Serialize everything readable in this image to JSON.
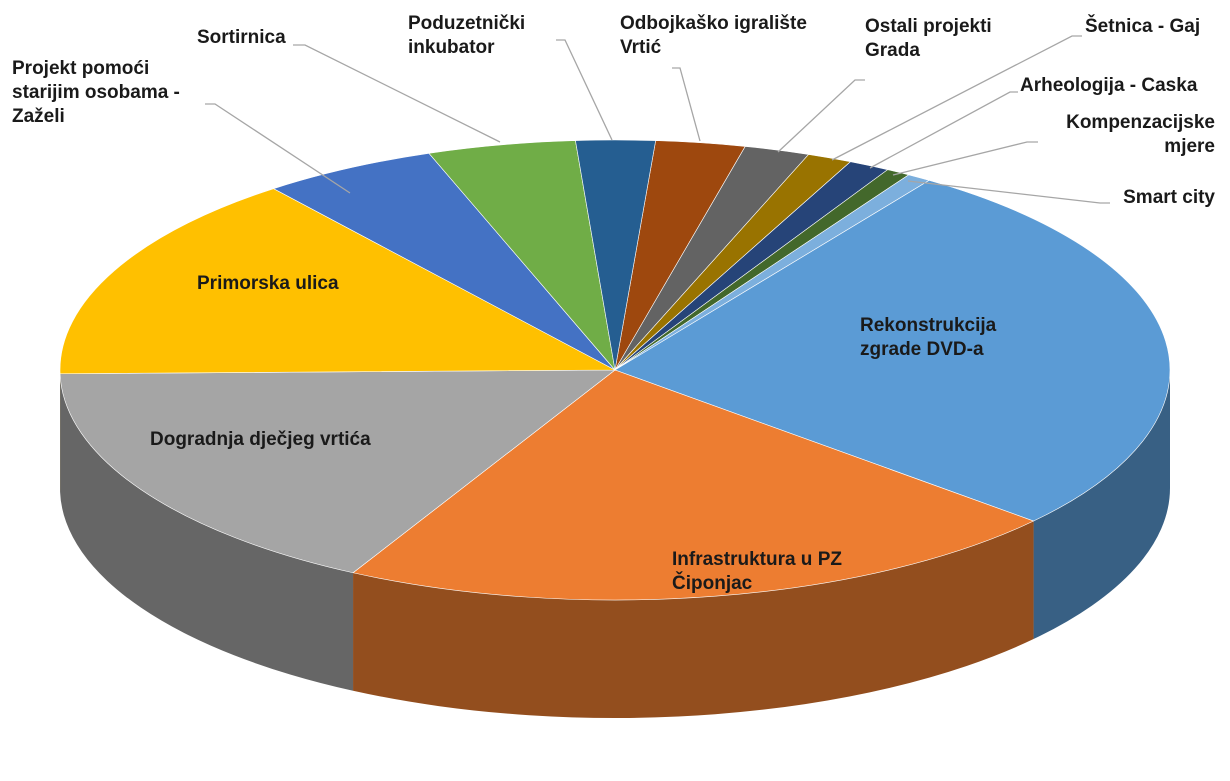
{
  "chart_data": {
    "type": "pie3d",
    "categories": [
      "Odbojkaško igralište Vrtić",
      "Ostali projekti Grada",
      "Šetnica - Gaj",
      "Arheologija - Caska",
      "Kompenzacijske mjere",
      "Smart city",
      "Rekonstrukcija zgrade DVD-a",
      "Infrastruktura u PZ Čiponjac",
      "Dogradnja dječjeg vrtića",
      "Primorska ulica",
      "Projekt pomoći starijim osobama - Zaželi",
      "Sortirnica",
      "Poduzetnički inkubator"
    ],
    "values": [
      2.6,
      1.9,
      1.3,
      1.2,
      0.7,
      0.7,
      26.8,
      21.4,
      16.9,
      14.7,
      5.1,
      4.3,
      2.3
    ],
    "colors": [
      "#9e480e",
      "#636363",
      "#997300",
      "#264478",
      "#43682b",
      "#7cafdd",
      "#5b9bd5",
      "#ed7d31",
      "#a5a5a5",
      "#ffc000",
      "#4472c4",
      "#70ad47",
      "#255e91"
    ]
  }
}
